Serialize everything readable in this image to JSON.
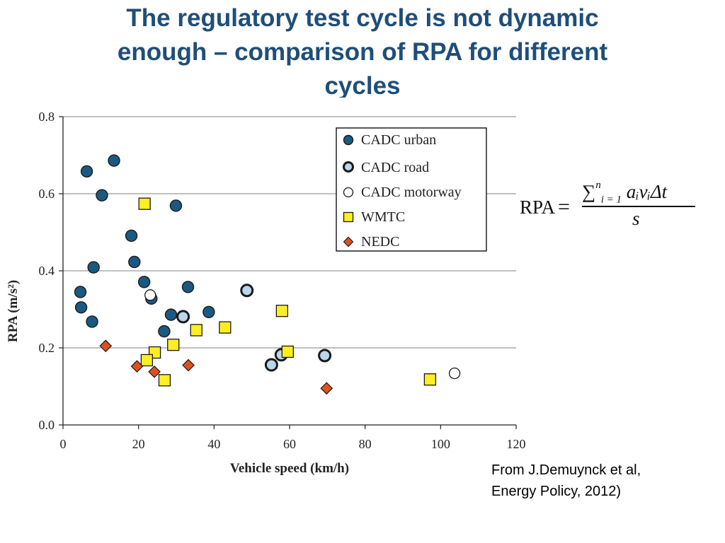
{
  "slide": {
    "title_lines": [
      "The regulatory test cycle is not dynamic",
      "enough – comparison of RPA for different",
      "cycles"
    ],
    "citation_lines": [
      "From J.Demuynck et al,",
      "Energy Policy, 2012)"
    ]
  },
  "formula": {
    "lhs": "RPA",
    "equals": "=",
    "sum_symbol": "∑",
    "sum_upper": "n",
    "sum_lower": "i = 1",
    "summand": "aᵢvᵢΔt",
    "denominator": "s"
  },
  "colors": {
    "title": "#1f4e79",
    "cadc_urban": "#1a5a82",
    "cadc_road": "#b9d7ec",
    "cadc_motorway": "#ffffff",
    "wmtc": "#ffee22",
    "nedc": "#e0501f",
    "gridline": "#9a9a9a"
  },
  "chart_data": {
    "type": "scatter",
    "xlabel": "Vehicle speed (km/h)",
    "ylabel": "RPA (m/s²)",
    "xlim": [
      0,
      120
    ],
    "ylim": [
      0.0,
      0.8
    ],
    "x_ticks": [
      "0",
      "20",
      "40",
      "60",
      "80",
      "100",
      "120"
    ],
    "y_ticks": [
      "0.0",
      "0.2",
      "0.4",
      "0.6",
      "0.8"
    ],
    "grid": "horizontal",
    "legend_position": "top-right",
    "series": [
      {
        "name": "CADC urban",
        "marker": "circle",
        "points": [
          [
            6.3,
            0.658
          ],
          [
            13.5,
            0.686
          ],
          [
            10.3,
            0.596
          ],
          [
            29.9,
            0.569
          ],
          [
            18.1,
            0.491
          ],
          [
            18.9,
            0.423
          ],
          [
            8.1,
            0.409
          ],
          [
            21.5,
            0.371
          ],
          [
            4.6,
            0.345
          ],
          [
            33.1,
            0.358
          ],
          [
            4.8,
            0.305
          ],
          [
            23.4,
            0.328
          ],
          [
            7.7,
            0.268
          ],
          [
            28.6,
            0.286
          ],
          [
            38.6,
            0.293
          ],
          [
            26.8,
            0.243
          ]
        ]
      },
      {
        "name": "CADC road",
        "marker": "circle",
        "points": [
          [
            31.8,
            0.281
          ],
          [
            48.7,
            0.349
          ],
          [
            55.2,
            0.156
          ],
          [
            57.8,
            0.182
          ],
          [
            69.3,
            0.18
          ]
        ]
      },
      {
        "name": "CADC motorway",
        "marker": "circle",
        "points": [
          [
            23.1,
            0.337
          ],
          [
            103.7,
            0.134
          ]
        ]
      },
      {
        "name": "WMTC",
        "marker": "square",
        "points": [
          [
            21.6,
            0.574
          ],
          [
            58.0,
            0.296
          ],
          [
            42.9,
            0.253
          ],
          [
            35.3,
            0.246
          ],
          [
            29.2,
            0.208
          ],
          [
            59.5,
            0.19
          ],
          [
            24.3,
            0.188
          ],
          [
            22.2,
            0.168
          ],
          [
            26.9,
            0.116
          ],
          [
            97.2,
            0.118
          ]
        ]
      },
      {
        "name": "NEDC",
        "marker": "diamond",
        "points": [
          [
            11.3,
            0.205
          ],
          [
            19.6,
            0.152
          ],
          [
            33.2,
            0.155
          ],
          [
            24.2,
            0.138
          ],
          [
            69.8,
            0.095
          ]
        ]
      }
    ]
  }
}
